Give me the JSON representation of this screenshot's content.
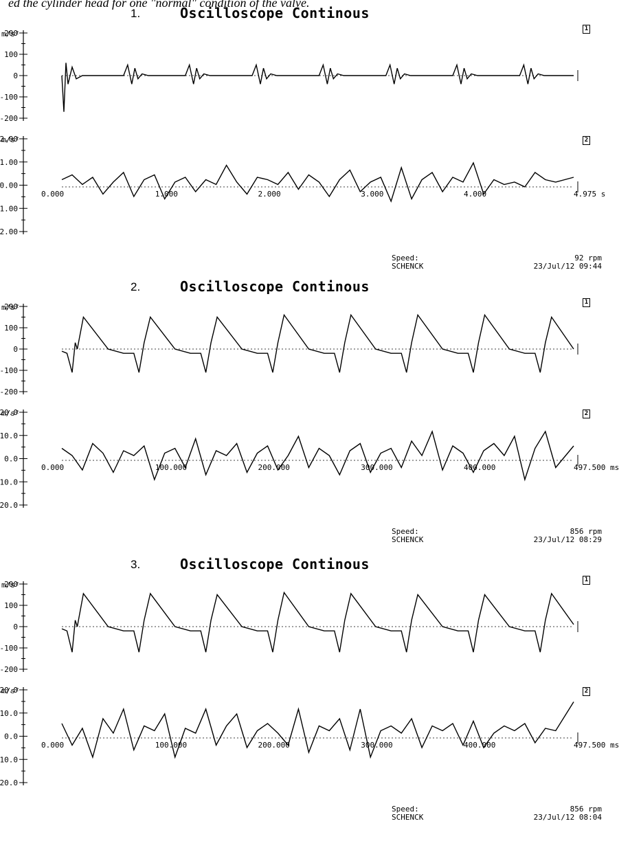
{
  "caption": "ed the cylinder head for one \"normal\" condition of the valve.",
  "chart_data": [
    {
      "type": "line",
      "number": "1.",
      "title": "Oscilloscope Continous",
      "speed_label": "Speed:",
      "speed_value": "92 rpm",
      "source": "SCHENCK",
      "timestamp": "23/Jul/12 09:44",
      "panels": [
        {
          "channel": "1",
          "unit": "m/s²",
          "ylim": [
            -200,
            200
          ],
          "yticks": [
            "200",
            "100",
            "0",
            "-100",
            "-200"
          ],
          "series": [
            {
              "x": [
                0,
                0.02,
                0.04,
                0.06,
                0.1,
                0.14,
                0.2,
                0.6,
                0.64,
                0.68,
                0.71,
                0.74,
                0.78,
                0.84,
                1.2,
                1.24,
                1.28,
                1.31,
                1.34,
                1.38,
                1.44,
                1.85,
                1.89,
                1.93,
                1.96,
                1.99,
                2.03,
                2.09,
                2.5,
                2.54,
                2.58,
                2.61,
                2.64,
                2.68,
                2.74,
                3.15,
                3.19,
                3.23,
                3.26,
                3.29,
                3.33,
                3.39,
                3.8,
                3.84,
                3.88,
                3.91,
                3.94,
                3.98,
                4.04,
                4.45,
                4.49,
                4.53,
                4.56,
                4.59,
                4.63,
                4.69,
                4.975
              ],
              "values": [
                0,
                -170,
                60,
                -40,
                40,
                -15,
                0,
                0,
                50,
                -40,
                35,
                -15,
                8,
                0,
                0,
                50,
                -40,
                35,
                -15,
                8,
                0,
                0,
                50,
                -40,
                35,
                -15,
                8,
                0,
                0,
                50,
                -40,
                35,
                -15,
                8,
                0,
                0,
                50,
                -40,
                35,
                -15,
                8,
                0,
                0,
                50,
                -40,
                35,
                -15,
                8,
                0,
                0,
                50,
                -40,
                35,
                -15,
                8,
                0,
                0
              ]
            }
          ]
        },
        {
          "channel": "2",
          "unit": "m/s²",
          "ylim": [
            -2,
            2
          ],
          "yticks": [
            "2.00",
            "1.00",
            "0.00",
            "-1.00",
            "-2.00"
          ],
          "xticks": [
            "0.000",
            "1.000",
            "2.000",
            "3.000",
            "4.000",
            "4.975 s"
          ],
          "xtick_values": [
            0,
            1,
            2,
            3,
            4,
            4.975
          ],
          "series": [
            {
              "x": [
                0,
                0.1,
                0.2,
                0.3,
                0.4,
                0.5,
                0.6,
                0.7,
                0.8,
                0.9,
                1.0,
                1.1,
                1.2,
                1.3,
                1.4,
                1.5,
                1.6,
                1.7,
                1.8,
                1.9,
                2.0,
                2.1,
                2.2,
                2.3,
                2.4,
                2.5,
                2.6,
                2.7,
                2.8,
                2.9,
                3.0,
                3.1,
                3.2,
                3.3,
                3.4,
                3.5,
                3.6,
                3.7,
                3.8,
                3.9,
                4.0,
                4.1,
                4.2,
                4.3,
                4.4,
                4.5,
                4.6,
                4.7,
                4.8,
                4.975
              ],
              "values": [
                0.3,
                0.5,
                0.1,
                0.4,
                -0.3,
                0.2,
                0.6,
                -0.4,
                0.3,
                0.5,
                -0.5,
                0.2,
                0.4,
                -0.2,
                0.3,
                0.1,
                0.9,
                0.2,
                -0.3,
                0.4,
                0.3,
                0.1,
                0.6,
                -0.1,
                0.5,
                0.2,
                -0.4,
                0.3,
                0.7,
                -0.2,
                0.2,
                0.4,
                -0.6,
                0.8,
                -0.5,
                0.3,
                0.6,
                -0.2,
                0.4,
                0.2,
                1.0,
                -0.3,
                0.3,
                0.1,
                0.2,
                0.0,
                0.6,
                0.3,
                0.2,
                0.4
              ]
            }
          ]
        }
      ]
    },
    {
      "type": "line",
      "number": "2.",
      "title": "Oscilloscope Continous",
      "speed_label": "Speed:",
      "speed_value": "856 rpm",
      "source": "SCHENCK",
      "timestamp": "23/Jul/12 08:29",
      "panels": [
        {
          "channel": "1",
          "unit": "m/s²",
          "ylim": [
            -200,
            200
          ],
          "yticks": [
            "200",
            "100",
            "0",
            "-100",
            "-200"
          ],
          "series": [
            {
              "x": [
                0,
                5,
                10,
                13,
                15,
                21,
                45,
                60,
                70,
                75,
                80,
                86,
                110,
                125,
                135,
                140,
                145,
                151,
                175,
                190,
                200,
                205,
                210,
                216,
                240,
                255,
                265,
                270,
                275,
                281,
                305,
                320,
                330,
                335,
                340,
                346,
                370,
                385,
                395,
                400,
                405,
                411,
                435,
                450,
                460,
                465,
                470,
                476,
                497.5
              ],
              "values": [
                -10,
                -20,
                -110,
                30,
                0,
                150,
                0,
                -20,
                -20,
                -110,
                30,
                150,
                0,
                -20,
                -20,
                -110,
                30,
                150,
                0,
                -20,
                -20,
                -110,
                30,
                160,
                0,
                -20,
                -20,
                -110,
                30,
                160,
                0,
                -20,
                -20,
                -110,
                30,
                160,
                0,
                -20,
                -20,
                -110,
                30,
                160,
                0,
                -20,
                -20,
                -110,
                30,
                150,
                0
              ]
            }
          ]
        },
        {
          "channel": "2",
          "unit": "m/s²",
          "ylim": [
            -20,
            20
          ],
          "yticks": [
            "20.0",
            "10.0",
            "0.0",
            "-10.0",
            "-20.0"
          ],
          "xticks": [
            "0.000",
            "100.000",
            "200.000",
            "300.000",
            "400.000",
            "497.500 ms"
          ],
          "xtick_values": [
            0,
            100,
            200,
            300,
            400,
            497.5
          ],
          "series": [
            {
              "x": [
                0,
                10,
                20,
                30,
                40,
                50,
                60,
                70,
                80,
                90,
                100,
                110,
                120,
                130,
                140,
                150,
                160,
                170,
                180,
                190,
                200,
                210,
                220,
                230,
                240,
                250,
                260,
                270,
                280,
                290,
                300,
                310,
                320,
                330,
                340,
                350,
                360,
                370,
                380,
                390,
                400,
                410,
                420,
                430,
                440,
                450,
                460,
                470,
                480,
                497.5
              ],
              "values": [
                5,
                2,
                -4,
                7,
                3,
                -5,
                4,
                2,
                6,
                -8,
                3,
                5,
                -3,
                9,
                -6,
                4,
                2,
                7,
                -5,
                3,
                6,
                -4,
                2,
                10,
                -3,
                5,
                2,
                -6,
                4,
                7,
                -5,
                3,
                5,
                -3,
                8,
                2,
                12,
                -4,
                6,
                3,
                -5,
                4,
                7,
                2,
                10,
                -8,
                5,
                12,
                -3,
                6
              ]
            }
          ]
        }
      ]
    },
    {
      "type": "line",
      "number": "3.",
      "title": "Oscilloscope Continous",
      "speed_label": "Speed:",
      "speed_value": "856 rpm",
      "source": "SCHENCK",
      "timestamp": "23/Jul/12 08:04",
      "panels": [
        {
          "channel": "1",
          "unit": "m/s²",
          "ylim": [
            -200,
            200
          ],
          "yticks": [
            "200",
            "100",
            "0",
            "-100",
            "-200"
          ],
          "series": [
            {
              "x": [
                0,
                5,
                10,
                13,
                15,
                21,
                45,
                60,
                70,
                75,
                80,
                86,
                110,
                125,
                135,
                140,
                145,
                151,
                175,
                190,
                200,
                205,
                210,
                216,
                240,
                255,
                265,
                270,
                275,
                281,
                305,
                320,
                330,
                335,
                340,
                346,
                370,
                385,
                395,
                400,
                405,
                411,
                435,
                450,
                460,
                465,
                470,
                476,
                497.5
              ],
              "values": [
                -10,
                -20,
                -120,
                30,
                0,
                155,
                0,
                -20,
                -20,
                -120,
                30,
                155,
                0,
                -20,
                -20,
                -120,
                30,
                150,
                0,
                -20,
                -20,
                -120,
                30,
                160,
                0,
                -20,
                -20,
                -120,
                30,
                155,
                0,
                -20,
                -20,
                -120,
                30,
                150,
                0,
                -20,
                -20,
                -120,
                30,
                150,
                0,
                -20,
                -20,
                -120,
                30,
                155,
                10
              ]
            }
          ]
        },
        {
          "channel": "2",
          "unit": "m/s²",
          "ylim": [
            -20,
            20
          ],
          "yticks": [
            "20.0",
            "10.0",
            "0.0",
            "-10.0",
            "-20.0"
          ],
          "xticks": [
            "0.000",
            "100.000",
            "200.000",
            "300.000",
            "400.000",
            "497.500 ms"
          ],
          "xtick_values": [
            0,
            100,
            200,
            300,
            400,
            497.5
          ],
          "series": [
            {
              "x": [
                0,
                10,
                20,
                30,
                40,
                50,
                60,
                70,
                80,
                90,
                100,
                110,
                120,
                130,
                140,
                150,
                160,
                170,
                180,
                190,
                200,
                210,
                220,
                230,
                240,
                250,
                260,
                270,
                280,
                290,
                300,
                310,
                320,
                330,
                340,
                350,
                360,
                370,
                380,
                390,
                400,
                410,
                420,
                430,
                440,
                450,
                460,
                470,
                480,
                497.5
              ],
              "values": [
                6,
                -3,
                4,
                -8,
                8,
                2,
                12,
                -5,
                5,
                3,
                10,
                -8,
                4,
                2,
                12,
                -3,
                5,
                10,
                -4,
                3,
                6,
                2,
                -3,
                12,
                -6,
                5,
                3,
                8,
                -5,
                12,
                -8,
                3,
                5,
                2,
                8,
                -4,
                5,
                3,
                6,
                -3,
                7,
                -4,
                2,
                5,
                3,
                6,
                -2,
                4,
                3,
                15
              ]
            }
          ]
        }
      ]
    }
  ]
}
